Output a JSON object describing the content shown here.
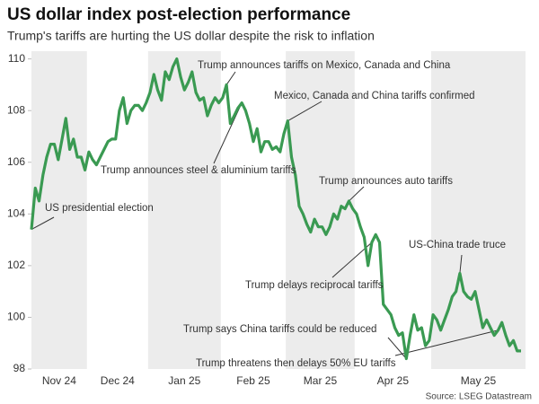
{
  "chart_data": {
    "type": "line",
    "title": "US dollar index post-election performance",
    "subtitle": "Trump's tariffs are hurting the US dollar despite the risk to inflation",
    "source": "Source: LSEG Datastream",
    "categories": [
      "Nov 24",
      null,
      null,
      null,
      null,
      null,
      null,
      null,
      null,
      null,
      null,
      null,
      null,
      null,
      null,
      "Dec 24",
      null,
      null,
      null,
      null,
      null,
      null,
      null,
      null,
      null,
      null,
      null,
      null,
      null,
      null,
      null,
      "Jan 25",
      null,
      null,
      null,
      null,
      null,
      null,
      null,
      null,
      null,
      null,
      null,
      null,
      null,
      null,
      null,
      null,
      null,
      null,
      "Feb 25",
      null,
      null,
      null,
      null,
      null,
      null,
      null,
      null,
      null,
      null,
      null,
      null,
      null,
      null,
      null,
      null,
      "Mar 25",
      null,
      null,
      null,
      null,
      null,
      null,
      null,
      null,
      null,
      null,
      null,
      null,
      null,
      null,
      null,
      null,
      null,
      "Apr 25",
      null,
      null,
      null,
      null,
      null,
      null,
      null,
      null,
      null,
      null,
      null,
      null,
      null,
      null,
      null,
      null,
      null,
      null,
      null,
      "May 25",
      null,
      null,
      null,
      null,
      null,
      null,
      null,
      null,
      null,
      null,
      null,
      null,
      null,
      null,
      null,
      null,
      null,
      null,
      null,
      null,
      null,
      null,
      null
    ],
    "series": [
      {
        "name": "US dollar index",
        "color": "#3a9a52",
        "values": [
          103.4,
          105.0,
          104.5,
          105.5,
          106.2,
          106.7,
          106.7,
          106.1,
          106.9,
          107.7,
          106.5,
          106.9,
          106.2,
          106.2,
          105.7,
          106.4,
          106.1,
          105.9,
          106.2,
          106.5,
          106.8,
          106.9,
          106.9,
          108.0,
          108.5,
          107.5,
          108.0,
          108.2,
          108.2,
          108.0,
          108.3,
          108.7,
          109.4,
          108.8,
          108.4,
          109.5,
          109.2,
          109.7,
          110.0,
          109.3,
          108.8,
          109.1,
          109.5,
          108.7,
          108.4,
          108.5,
          107.8,
          108.2,
          108.5,
          108.3,
          108.5,
          109.0,
          107.5,
          107.8,
          108.1,
          108.3,
          108.0,
          107.5,
          106.8,
          107.3,
          106.4,
          106.8,
          106.8,
          106.5,
          106.6,
          106.4,
          107.1,
          107.6,
          106.2,
          105.5,
          104.3,
          104.0,
          103.6,
          103.3,
          103.8,
          103.5,
          103.5,
          103.2,
          103.5,
          104.0,
          103.8,
          104.3,
          104.2,
          104.5,
          104.2,
          104.0,
          103.5,
          103.1,
          102.0,
          102.9,
          103.2,
          102.9,
          100.5,
          100.3,
          100.1,
          99.6,
          99.3,
          99.4,
          98.4,
          99.3,
          100.1,
          99.5,
          99.6,
          98.9,
          99.1,
          100.1,
          99.9,
          99.5,
          99.9,
          100.3,
          100.8,
          101.0,
          101.7,
          101.0,
          100.8,
          100.7,
          101.0,
          100.3,
          99.6,
          99.9,
          99.6,
          99.3,
          99.5,
          99.8,
          99.3,
          98.9,
          99.1,
          98.7,
          98.7
        ]
      }
    ],
    "annotations": [
      "US presidential election",
      "Trump announces steel & aluminium tariffs",
      "Trump announces tariffs on Mexico, Canada and China",
      "Mexico, Canada and China tariffs confirmed",
      "Trump announces auto tariffs",
      "Trump delays reciprocal tariffs",
      "US-China trade truce",
      "Trump says China tariffs could be reduced",
      "Trump threatens then delays 50% EU tariffs"
    ],
    "ylim": [
      98,
      110.3
    ],
    "yticks": [
      98,
      100,
      102,
      104,
      106,
      108,
      110
    ],
    "grid": false,
    "shade_alternate_months": true
  }
}
